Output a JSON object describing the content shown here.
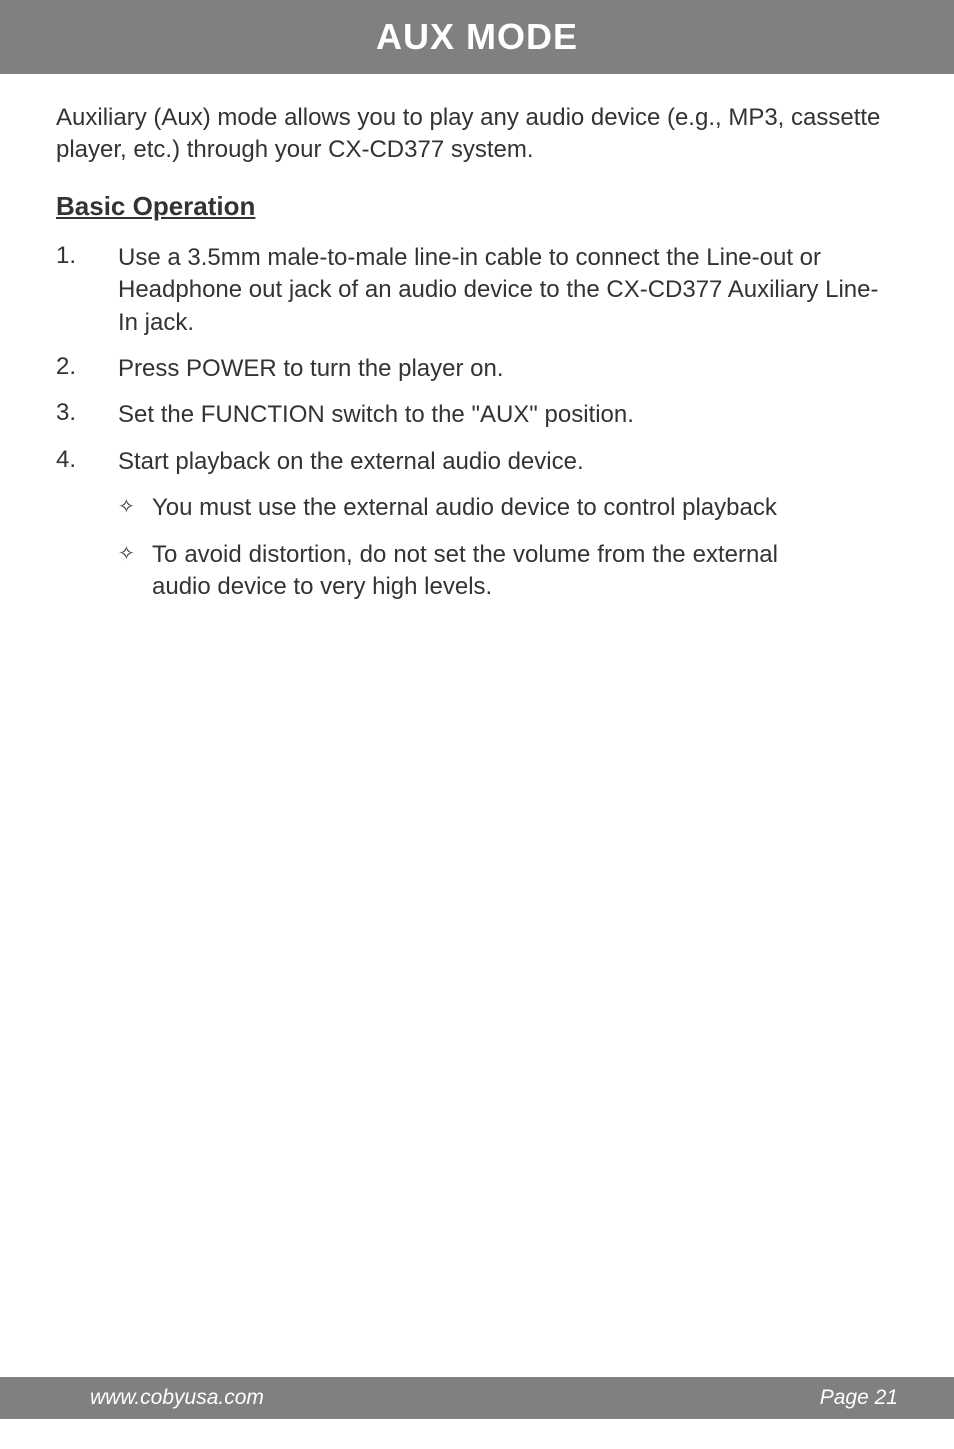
{
  "header": {
    "title": "AUX MODE",
    "bg_color": "#808080",
    "text_color": "#ffffff",
    "title_fontsize": 36
  },
  "intro": "Auxiliary (Aux) mode allows you to play any audio device (e.g., MP3, cassette player, etc.) through your CX-CD377 system.",
  "section_title": "Basic Operation",
  "steps": [
    {
      "num": "1.",
      "text": "Use a 3.5mm male-to-male line-in cable to connect the Line-out or Headphone out jack of an audio device to the CX-CD377 Auxiliary Line-In jack."
    },
    {
      "num": "2.",
      "text": "Press POWER to turn the player on."
    },
    {
      "num": "3.",
      "text": "Set the FUNCTION switch to the \"AUX\" position."
    },
    {
      "num": "4.",
      "text": "Start playback on the external audio device.",
      "sub": [
        {
          "bullet": "✧",
          "text": "You must use the external audio device to control playback"
        },
        {
          "bullet": "✧",
          "text": "To avoid distortion, do not set the volume from the external audio device to very high levels.",
          "justify": true
        }
      ]
    }
  ],
  "footer": {
    "left": "www.cobyusa.com",
    "right": "Page 21",
    "bg_color": "#808080",
    "text_color": "#ffffff"
  },
  "colors": {
    "body_text": "#333333",
    "background": "#ffffff"
  },
  "typography": {
    "body_fontsize": 24,
    "section_title_fontsize": 26,
    "footer_fontsize": 21
  }
}
